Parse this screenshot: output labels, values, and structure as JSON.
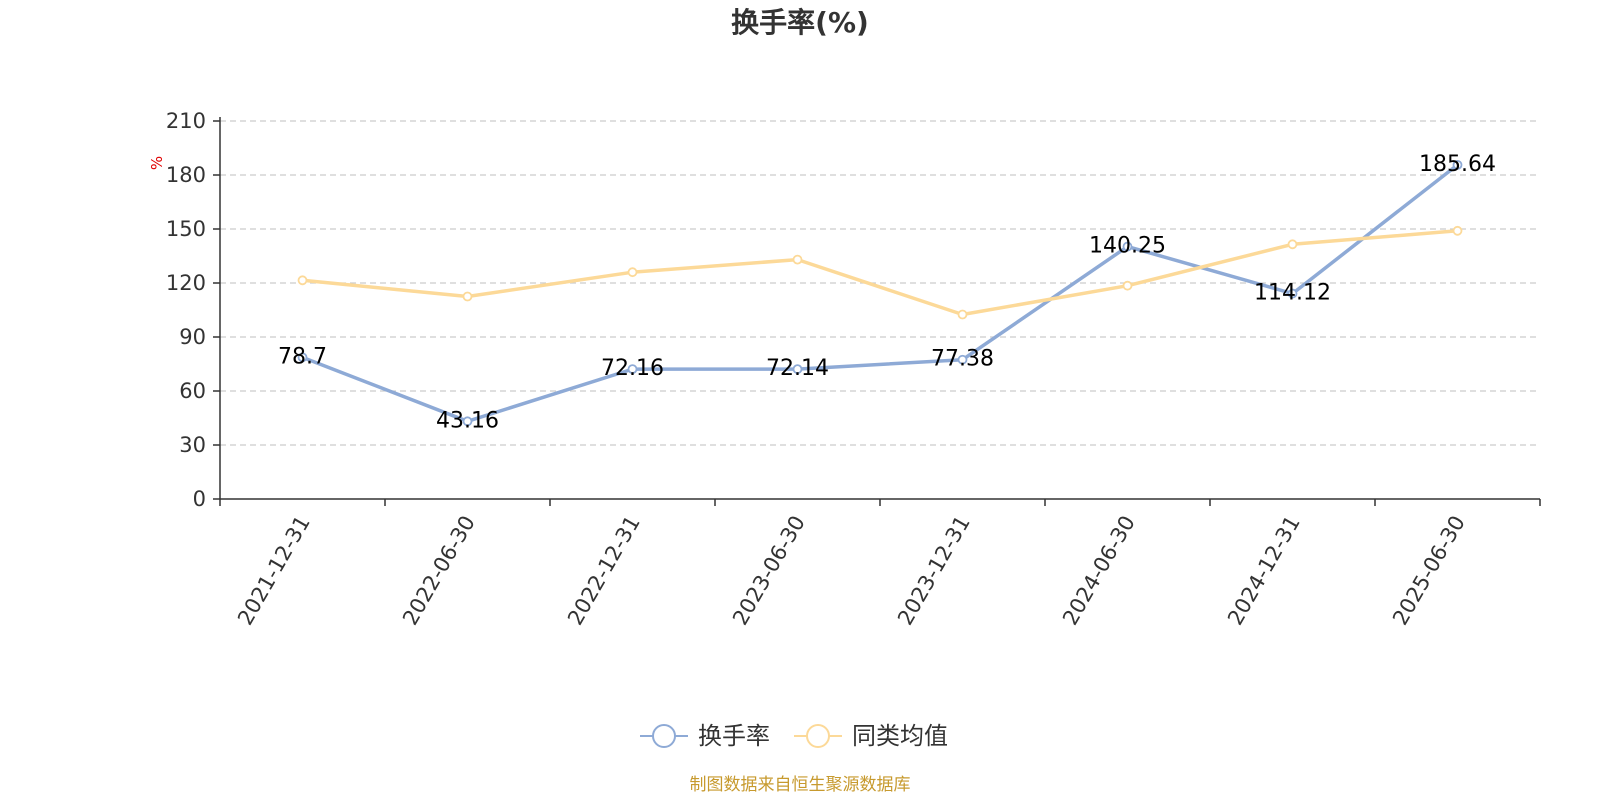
{
  "colors": {
    "series_1": "#8eaad6",
    "series_2": "#fcd998",
    "grid": "#cccccc",
    "axis": "#333333",
    "unit": "#e00000",
    "source": "#c79a2e"
  },
  "chart_data": {
    "type": "line",
    "title": "换手率(%)",
    "ylabel": "%",
    "xlabel": "",
    "x": [
      "2021-12-31",
      "2022-06-30",
      "2022-12-31",
      "2023-06-30",
      "2023-12-31",
      "2024-06-30",
      "2024-12-31",
      "2025-06-30"
    ],
    "ylim": [
      0,
      210
    ],
    "yticks": [
      0,
      30,
      60,
      90,
      120,
      150,
      180,
      210
    ],
    "grid": true,
    "legend_position": "bottom",
    "series": [
      {
        "name": "换手率",
        "values": [
          78.7,
          43.16,
          72.16,
          72.14,
          77.38,
          140.25,
          114.12,
          185.64
        ],
        "labels": [
          "78.7",
          "43.16",
          "72.16",
          "72.14",
          "77.38",
          "140.25",
          "114.12",
          "185.64"
        ]
      },
      {
        "name": "同类均值",
        "values": [
          121.5,
          112.5,
          126.0,
          133.0,
          102.5,
          118.5,
          141.5,
          149.0
        ]
      }
    ]
  },
  "footer": {
    "source": "制图数据来自恒生聚源数据库"
  }
}
